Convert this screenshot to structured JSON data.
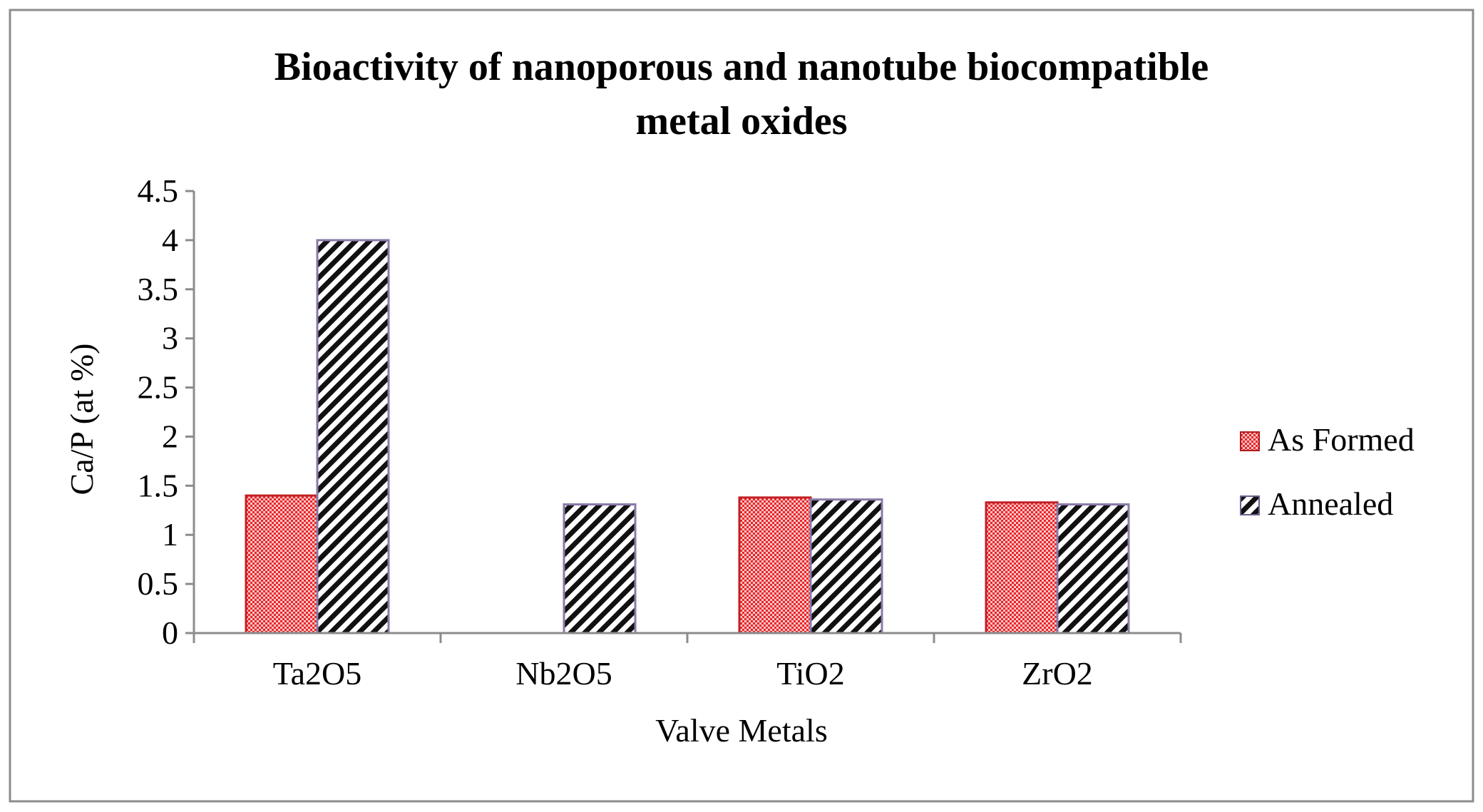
{
  "chart_data": {
    "type": "bar",
    "title_lines": [
      "Bioactivity of nanoporous and nanotube biocompatible",
      "metal oxides"
    ],
    "xlabel": "Valve Metals",
    "ylabel": "Ca/P (at %)",
    "categories": [
      "Ta2O5",
      "Nb2O5",
      "TiO2",
      "ZrO2"
    ],
    "ylim": [
      0,
      4.5
    ],
    "yticks": [
      "0",
      "0.5",
      "1",
      "1.5",
      "2",
      "2.5",
      "3",
      "3.5",
      "4",
      "4.5"
    ],
    "grid": false,
    "legend_position": "right",
    "series": [
      {
        "name": "As Formed",
        "values": [
          1.4,
          null,
          1.38,
          1.33
        ],
        "color": "#e8262a",
        "pattern": "checker"
      },
      {
        "name": "Annealed",
        "values": [
          4.0,
          1.31,
          1.36,
          1.31
        ],
        "color": "#ffffff",
        "pattern": "diagonal",
        "border": "#8a7aa8"
      }
    ]
  }
}
